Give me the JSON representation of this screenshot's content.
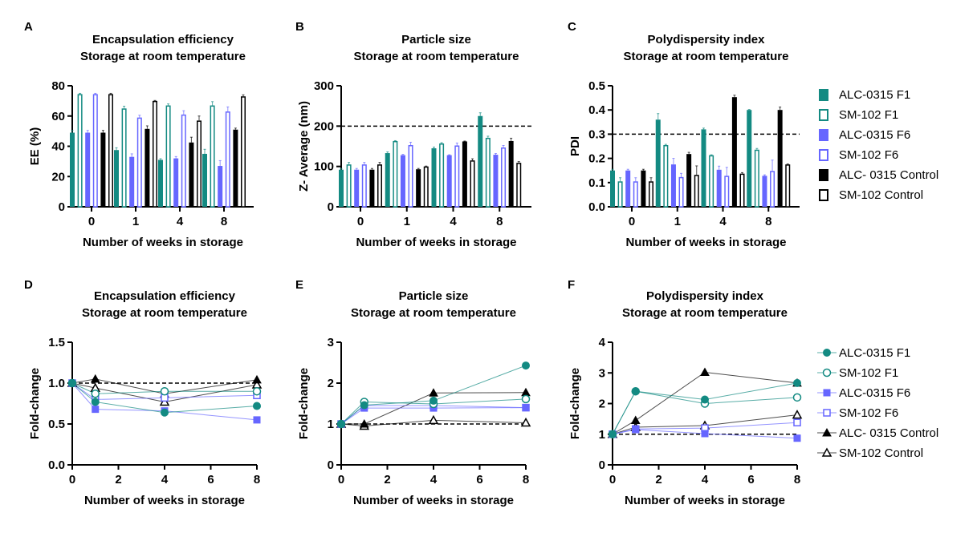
{
  "colors": {
    "teal": "#138a82",
    "blue": "#6666ff",
    "black": "#000000"
  },
  "legend": [
    {
      "name": "ALC-0315 F1",
      "color": "#138a82",
      "fill": "solid",
      "marker": "circle"
    },
    {
      "name": "SM-102 F1",
      "color": "#138a82",
      "fill": "open",
      "marker": "circle"
    },
    {
      "name": "ALC-0315 F6",
      "color": "#6666ff",
      "fill": "solid",
      "marker": "square"
    },
    {
      "name": "SM-102 F6",
      "color": "#6666ff",
      "fill": "open",
      "marker": "square"
    },
    {
      "name": "ALC- 0315 Control",
      "color": "#000000",
      "fill": "solid",
      "marker": "triangle"
    },
    {
      "name": "SM-102 Control",
      "color": "#000000",
      "fill": "open",
      "marker": "triangle"
    }
  ],
  "chart_data": [
    {
      "panel": "A",
      "type": "bar",
      "title": [
        "Encapsulation efficiency",
        "Storage at room temperature"
      ],
      "xlabel": "Number of weeks in storage",
      "ylabel": "EE (%)",
      "categories": [
        "0",
        "1",
        "4",
        "8"
      ],
      "ylim": [
        0,
        80
      ],
      "yticks": [
        0,
        20,
        40,
        60,
        80
      ],
      "series": [
        {
          "name": "ALC-0315 F1",
          "values": [
            49,
            37.5,
            31,
            35
          ],
          "errors": [
            1.5,
            1.5,
            0.8,
            3
          ]
        },
        {
          "name": "SM-102 F1",
          "values": [
            74.5,
            65,
            67,
            67
          ],
          "errors": [
            0.5,
            1.5,
            1,
            2.5
          ]
        },
        {
          "name": "ALC-0315 F6",
          "values": [
            49,
            33,
            32,
            27
          ],
          "errors": [
            1.5,
            2,
            1.2,
            3.5
          ]
        },
        {
          "name": "SM-102 F6",
          "values": [
            74.5,
            59,
            61,
            63
          ],
          "errors": [
            0.5,
            1.5,
            2.5,
            3
          ]
        },
        {
          "name": "ALC- 0315 Control",
          "values": [
            49,
            51.5,
            42.5,
            51
          ],
          "errors": [
            1.5,
            2,
            3.5,
            1
          ]
        },
        {
          "name": "SM-102 Control",
          "values": [
            74.5,
            70,
            57,
            73
          ],
          "errors": [
            0.5,
            0.3,
            3,
            1
          ]
        }
      ]
    },
    {
      "panel": "B",
      "type": "bar",
      "title": [
        "Particle size",
        "Storage at room temperature"
      ],
      "xlabel": "Number of weeks in storage",
      "ylabel": "Z- Average (nm)",
      "categories": [
        "0",
        "1",
        "4",
        "8"
      ],
      "ylim": [
        0,
        300
      ],
      "yticks": [
        0,
        100,
        200,
        300
      ],
      "reference_line": 200,
      "series": [
        {
          "name": "ALC-0315 F1",
          "values": [
            92,
            133,
            145,
            225
          ],
          "errors": [
            3,
            3,
            3,
            8
          ]
        },
        {
          "name": "SM-102 F1",
          "values": [
            105,
            163,
            157,
            171
          ],
          "errors": [
            5,
            1,
            2,
            4
          ]
        },
        {
          "name": "ALC-0315 F6",
          "values": [
            92,
            128,
            128,
            129
          ],
          "errors": [
            3,
            2,
            1,
            3
          ]
        },
        {
          "name": "SM-102 F6",
          "values": [
            105,
            153,
            152,
            147
          ],
          "errors": [
            5,
            7,
            6,
            5
          ]
        },
        {
          "name": "ALC- 0315 Control",
          "values": [
            92,
            93,
            162,
            163
          ],
          "errors": [
            3,
            2,
            1,
            7
          ]
        },
        {
          "name": "SM-102 Control",
          "values": [
            105,
            100,
            115,
            109
          ],
          "errors": [
            5,
            1,
            4,
            3
          ]
        }
      ]
    },
    {
      "panel": "C",
      "type": "bar",
      "title": [
        "Polydispersity index",
        "Storage at room temperature"
      ],
      "xlabel": "Number of weeks in storage",
      "ylabel": "PDI",
      "categories": [
        "0",
        "1",
        "4",
        "8"
      ],
      "ylim": [
        0,
        0.5
      ],
      "yticks": [
        0.0,
        0.1,
        0.2,
        0.3,
        0.4,
        0.5
      ],
      "reference_line": 0.3,
      "series": [
        {
          "name": "ALC-0315 F1",
          "values": [
            0.15,
            0.36,
            0.32,
            0.4
          ],
          "errors": [
            0.005,
            0.025,
            0.005,
            0.002
          ]
        },
        {
          "name": "SM-102 F1",
          "values": [
            0.105,
            0.255,
            0.213,
            0.236
          ],
          "errors": [
            0.015,
            0.003,
            0.002,
            0.005
          ]
        },
        {
          "name": "ALC-0315 F6",
          "values": [
            0.15,
            0.175,
            0.153,
            0.128
          ],
          "errors": [
            0.005,
            0.025,
            0.015,
            0.004
          ]
        },
        {
          "name": "SM-102 F6",
          "values": [
            0.105,
            0.123,
            0.128,
            0.148
          ],
          "errors": [
            0.015,
            0.015,
            0.035,
            0.045
          ]
        },
        {
          "name": "ALC- 0315 Control",
          "values": [
            0.15,
            0.218,
            0.453,
            0.4
          ],
          "errors": [
            0.005,
            0.007,
            0.008,
            0.012
          ]
        },
        {
          "name": "SM-102 Control",
          "values": [
            0.105,
            0.132,
            0.137,
            0.175
          ],
          "errors": [
            0.015,
            0.037,
            0.004,
            0.002
          ]
        }
      ]
    },
    {
      "panel": "D",
      "type": "line",
      "title": [
        "Encapsulation efficiency",
        "Storage at room temperature"
      ],
      "xlabel": "Number of weeks in storage",
      "ylabel": "Fold-change",
      "x": [
        0,
        1,
        4,
        8
      ],
      "xlim": [
        0,
        8
      ],
      "xticks": [
        0,
        2,
        4,
        6,
        8
      ],
      "ylim": [
        0,
        1.5
      ],
      "yticks": [
        "0.0",
        "0.5",
        "1.0",
        "1.5"
      ],
      "reference_line": 1,
      "series": [
        {
          "name": "ALC-0315 F1",
          "values": [
            1,
            0.77,
            0.64,
            0.72
          ]
        },
        {
          "name": "SM-102 F1",
          "values": [
            1,
            0.87,
            0.9,
            0.9
          ]
        },
        {
          "name": "ALC-0315 F6",
          "values": [
            1,
            0.68,
            0.66,
            0.55
          ]
        },
        {
          "name": "SM-102 F6",
          "values": [
            1,
            0.8,
            0.82,
            0.85
          ]
        },
        {
          "name": "ALC- 0315 Control",
          "values": [
            1,
            1.05,
            0.87,
            1.04
          ]
        },
        {
          "name": "SM-102 Control",
          "values": [
            1,
            0.94,
            0.77,
            0.98
          ]
        }
      ]
    },
    {
      "panel": "E",
      "type": "line",
      "title": [
        "Particle size",
        "Storage at room temperature"
      ],
      "xlabel": "Number of weeks in storage",
      "ylabel": "Fold-change",
      "x": [
        0,
        1,
        4,
        8
      ],
      "xlim": [
        0,
        8
      ],
      "xticks": [
        0,
        2,
        4,
        6,
        8
      ],
      "ylim": [
        0,
        3
      ],
      "yticks": [
        "0",
        "1",
        "2",
        "3"
      ],
      "reference_line": 1,
      "series": [
        {
          "name": "ALC-0315 F1",
          "values": [
            1,
            1.46,
            1.57,
            2.43
          ]
        },
        {
          "name": "SM-102 F1",
          "values": [
            1,
            1.54,
            1.49,
            1.61
          ]
        },
        {
          "name": "ALC-0315 F6",
          "values": [
            1,
            1.39,
            1.39,
            1.4
          ]
        },
        {
          "name": "SM-102 F6",
          "values": [
            1,
            1.45,
            1.45,
            1.4
          ]
        },
        {
          "name": "ALC- 0315 Control",
          "values": [
            1,
            1.0,
            1.76,
            1.77
          ]
        },
        {
          "name": "SM-102 Control",
          "values": [
            1,
            0.95,
            1.09,
            1.03
          ]
        }
      ]
    },
    {
      "panel": "F",
      "type": "line",
      "title": [
        "Polydispersity index",
        "Storage at room temperature"
      ],
      "xlabel": "Number of weeks in storage",
      "ylabel": "Fold-change",
      "x": [
        0,
        1,
        4,
        8
      ],
      "xlim": [
        0,
        8
      ],
      "xticks": [
        0,
        2,
        4,
        6,
        8
      ],
      "ylim": [
        0,
        4
      ],
      "yticks": [
        "0",
        "1",
        "2",
        "3",
        "4"
      ],
      "reference_line": 1,
      "series": [
        {
          "name": "ALC-0315 F1",
          "values": [
            1,
            2.4,
            2.13,
            2.67
          ]
        },
        {
          "name": "SM-102 F1",
          "values": [
            1,
            2.4,
            2.0,
            2.2
          ]
        },
        {
          "name": "ALC-0315 F6",
          "values": [
            1,
            1.15,
            1.02,
            0.87
          ]
        },
        {
          "name": "SM-102 F6",
          "values": [
            1,
            1.17,
            1.2,
            1.38
          ]
        },
        {
          "name": "ALC- 0315 Control",
          "values": [
            1,
            1.45,
            3.02,
            2.67
          ]
        },
        {
          "name": "SM-102 Control",
          "values": [
            1,
            1.23,
            1.28,
            1.63
          ]
        }
      ]
    }
  ]
}
